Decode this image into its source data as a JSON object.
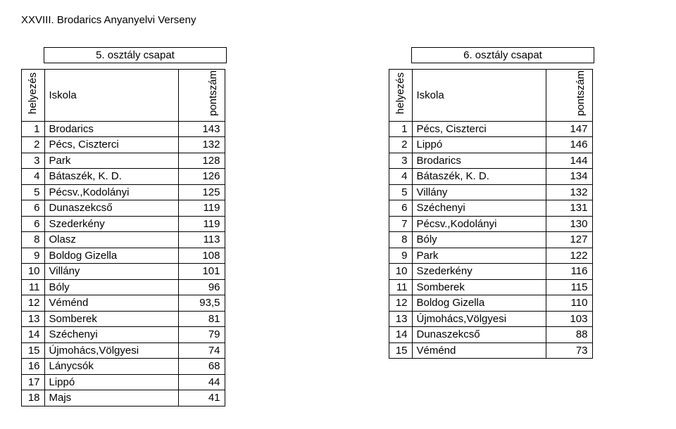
{
  "page_title": "XXVIII. Brodarics Anyanyelvi Verseny",
  "left": {
    "title": "5. osztály csapat",
    "headers": {
      "rank": "helyezés",
      "school": "Iskola",
      "score": "pontszám"
    },
    "rows": [
      {
        "rank": "1",
        "school": "Brodarics",
        "score": "143"
      },
      {
        "rank": "2",
        "school": "Pécs, Ciszterci",
        "score": "132"
      },
      {
        "rank": "3",
        "school": "Park",
        "score": "128"
      },
      {
        "rank": "4",
        "school": "Bátaszék, K. D.",
        "score": "126"
      },
      {
        "rank": "5",
        "school": "Pécsv.,Kodolányi",
        "score": "125"
      },
      {
        "rank": "6",
        "school": "Dunaszekcső",
        "score": "119"
      },
      {
        "rank": "6",
        "school": "Szederkény",
        "score": "119"
      },
      {
        "rank": "8",
        "school": "Olasz",
        "score": "113"
      },
      {
        "rank": "9",
        "school": "Boldog Gizella",
        "score": "108"
      },
      {
        "rank": "10",
        "school": "Villány",
        "score": "101"
      },
      {
        "rank": "11",
        "school": "Bóly",
        "score": "96"
      },
      {
        "rank": "12",
        "school": "Véménd",
        "score": "93,5"
      },
      {
        "rank": "13",
        "school": "Somberek",
        "score": "81"
      },
      {
        "rank": "14",
        "school": "Széchenyi",
        "score": "79"
      },
      {
        "rank": "15",
        "school": "Újmohács,Völgyesi",
        "score": "74"
      },
      {
        "rank": "16",
        "school": "Lánycsók",
        "score": "68"
      },
      {
        "rank": "17",
        "school": "Lippó",
        "score": "44"
      },
      {
        "rank": "18",
        "school": "Majs",
        "score": "41"
      }
    ]
  },
  "right": {
    "title": "6. osztály csapat",
    "headers": {
      "rank": "helyezés",
      "school": "Iskola",
      "score": "pontszám"
    },
    "rows": [
      {
        "rank": "1",
        "school": "Pécs, Ciszterci",
        "score": "147"
      },
      {
        "rank": "2",
        "school": "Lippó",
        "score": "146"
      },
      {
        "rank": "3",
        "school": "Brodarics",
        "score": "144"
      },
      {
        "rank": "4",
        "school": "Bátaszék, K. D.",
        "score": "134"
      },
      {
        "rank": "5",
        "school": "Villány",
        "score": "132"
      },
      {
        "rank": "6",
        "school": "Széchenyi",
        "score": "131"
      },
      {
        "rank": "7",
        "school": "Pécsv.,Kodolányi",
        "score": "130"
      },
      {
        "rank": "8",
        "school": "Bóly",
        "score": "127"
      },
      {
        "rank": "9",
        "school": "Park",
        "score": "122"
      },
      {
        "rank": "10",
        "school": "Szederkény",
        "score": "116"
      },
      {
        "rank": "11",
        "school": "Somberek",
        "score": "115"
      },
      {
        "rank": "12",
        "school": "Boldog Gizella",
        "score": "110"
      },
      {
        "rank": "13",
        "school": "Újmohács,Völgyesi",
        "score": "103"
      },
      {
        "rank": "14",
        "school": "Dunaszekcső",
        "score": "88"
      },
      {
        "rank": "15",
        "school": "Véménd",
        "score": "73"
      }
    ]
  }
}
